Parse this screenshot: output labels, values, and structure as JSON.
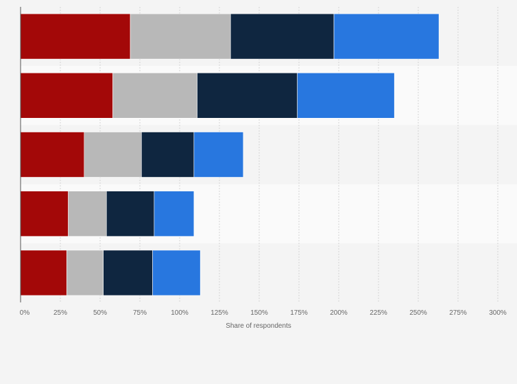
{
  "chart_data": {
    "type": "bar",
    "orientation": "horizontal",
    "stacked": true,
    "title": "",
    "xlabel": "Share of respondents",
    "ylabel": "",
    "xlim": [
      0,
      300
    ],
    "x_ticks": [
      0,
      25,
      50,
      75,
      100,
      125,
      150,
      175,
      200,
      225,
      250,
      275,
      300
    ],
    "x_tick_labels": [
      "0%",
      "25%",
      "50%",
      "75%",
      "100%",
      "125%",
      "150%",
      "175%",
      "200%",
      "225%",
      "250%",
      "275%",
      "300%"
    ],
    "grid": true,
    "legend": "none",
    "categories": [
      "",
      "",
      "",
      "",
      ""
    ],
    "series": [
      {
        "color": "#a30808",
        "values": [
          69,
          58,
          40,
          30,
          29
        ]
      },
      {
        "color": "#b8b8b8",
        "values": [
          63,
          53,
          36,
          24,
          23
        ]
      },
      {
        "color": "#0f2640",
        "values": [
          65,
          63,
          33,
          30,
          31
        ]
      },
      {
        "color": "#2877df",
        "values": [
          66,
          61,
          31,
          25,
          30
        ]
      }
    ],
    "band_colors": [
      "#f4f4f4",
      "#fafafa"
    ]
  }
}
